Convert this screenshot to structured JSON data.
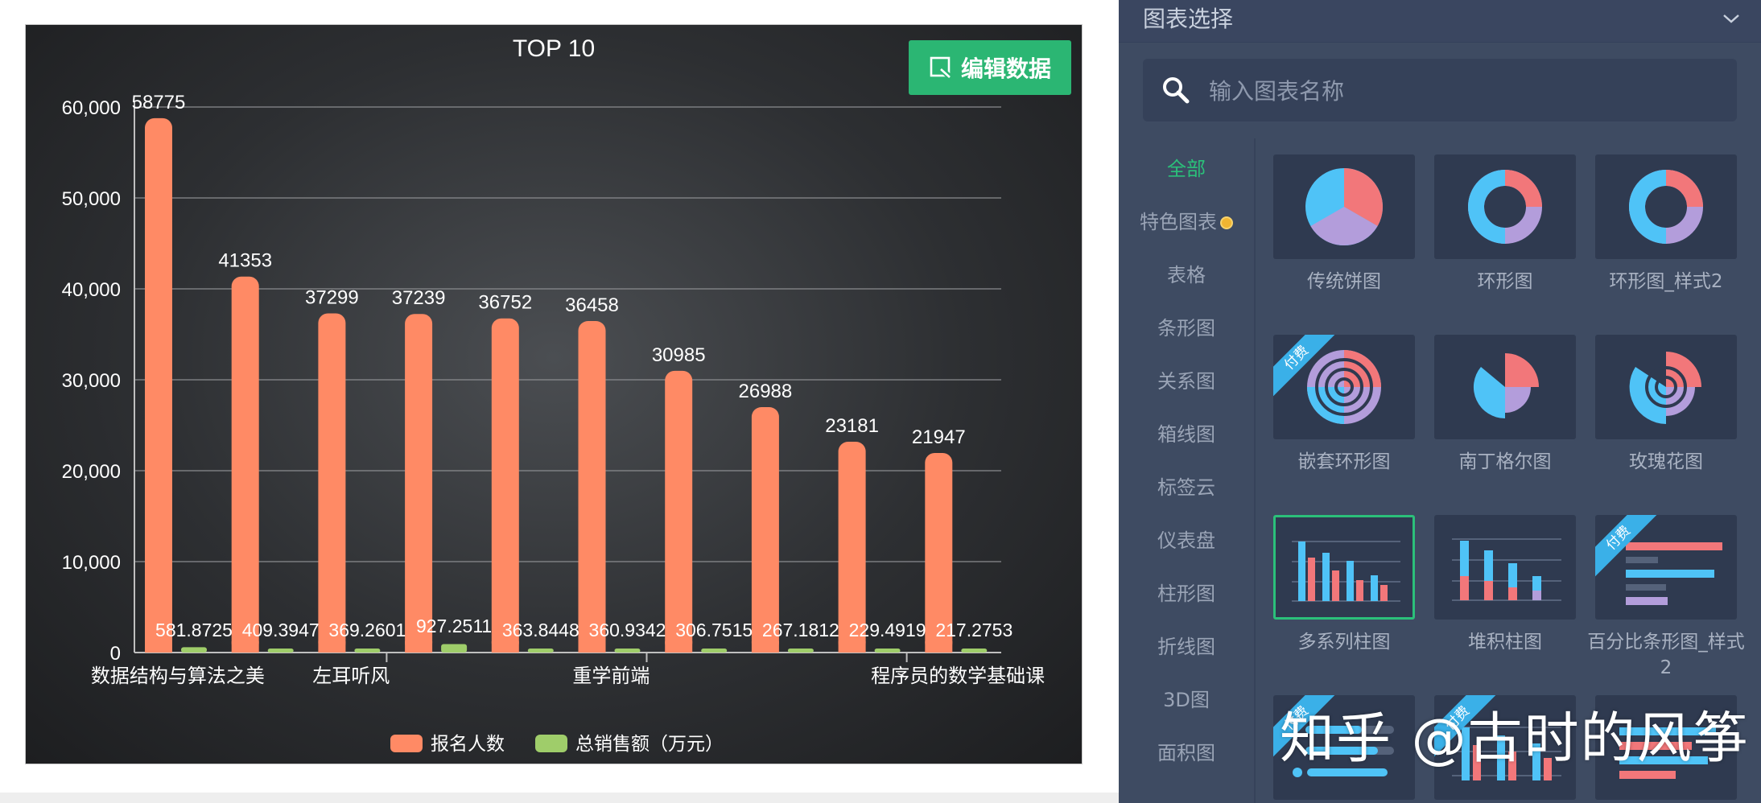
{
  "chart_data": {
    "type": "bar",
    "title": "TOP 10",
    "categories": [
      "数据结构与算法之美",
      "",
      "左耳听风",
      "",
      "",
      "重学前端",
      "",
      "",
      "",
      "程序员的数学基础课"
    ],
    "x_tick_labels": [
      "数据结构与算法之美",
      "左耳听风",
      "重学前端",
      "程序员的数学基础课"
    ],
    "y_ticks": [
      "0",
      "10,000",
      "20,000",
      "30,000",
      "40,000",
      "50,000",
      "60,000"
    ],
    "ylim": [
      0,
      60000
    ],
    "grid": true,
    "legend_position": "bottom",
    "series": [
      {
        "name": "报名人数",
        "color": "#ff8a65",
        "values": [
          58775,
          41353,
          37299,
          37239,
          36752,
          36458,
          30985,
          26988,
          23181,
          21947
        ],
        "labels": [
          "58775",
          "41353",
          "37299",
          "37239",
          "36752",
          "36458",
          "30985",
          "26988",
          "23181",
          "21947"
        ]
      },
      {
        "name": "总销售额（万元）",
        "color": "#9fcd6a",
        "values": [
          581.8725,
          409.3947,
          369.2601,
          927.2511,
          363.8448,
          360.9342,
          306.7515,
          267.1812,
          229.4919,
          217.2753
        ],
        "labels": [
          "581.8725",
          "409.3947",
          "369.2601",
          "927.2511",
          "363.8448",
          "360.9342",
          "306.7515",
          "267.1812",
          "229.4919",
          "217.2753"
        ]
      }
    ]
  },
  "toolbar": {
    "edit_label": "编辑数据"
  },
  "panel": {
    "title": "图表选择",
    "search_placeholder": "输入图表名称",
    "categories": [
      "全部",
      "特色图表",
      "表格",
      "条形图",
      "关系图",
      "箱线图",
      "标签云",
      "仪表盘",
      "柱形图",
      "折线图",
      "3D图",
      "面积图"
    ],
    "tiles": [
      {
        "label": "传统饼图"
      },
      {
        "label": "环形图"
      },
      {
        "label": "环形图_样式2"
      },
      {
        "label": "嵌套环形图",
        "badge": "付费"
      },
      {
        "label": "南丁格尔图"
      },
      {
        "label": "玫瑰花图"
      },
      {
        "label": "多系列柱图"
      },
      {
        "label": "堆积柱图"
      },
      {
        "label": "百分比条形图_样式2",
        "badge": "付费"
      },
      {
        "label": "",
        "badge": "付费"
      },
      {
        "label": "",
        "badge": "付费"
      },
      {
        "label": ""
      }
    ]
  },
  "colors": {
    "accent_green": "#2bc07a",
    "pie_blue": "#4fc3f7",
    "pie_red": "#f2777a",
    "pie_purple": "#b39ddb"
  },
  "watermark": "知乎 @古时的风筝"
}
